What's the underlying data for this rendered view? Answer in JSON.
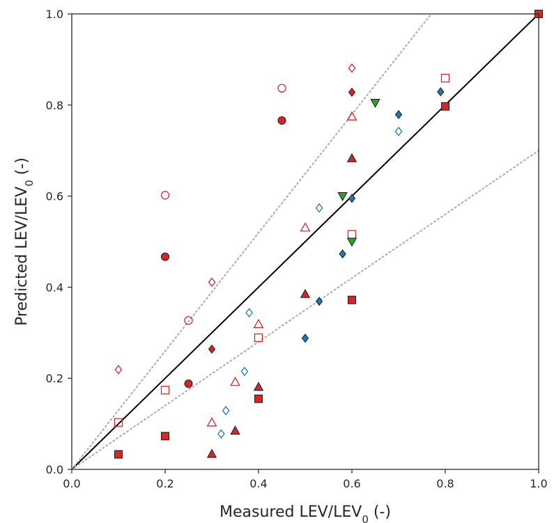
{
  "chart_data": {
    "type": "scatter",
    "xlabel": "Measured LEV/LEV",
    "ylabel": "Predicted LEV/LEV",
    "label_subscript": "0",
    "label_suffix": " (-)",
    "xlim": [
      0,
      1
    ],
    "ylim": [
      0,
      1
    ],
    "xticks": [
      "0.0",
      "0.2",
      "0.4",
      "0.6",
      "0.8",
      "1.0"
    ],
    "yticks": [
      "0.0",
      "0.2",
      "0.4",
      "0.6",
      "0.8",
      "1.0"
    ],
    "grid": false,
    "legend": "none",
    "colors": {
      "red": "#d62728",
      "blue": "#1f77b4",
      "green": "#2ca02c",
      "identity_line": "#000000",
      "bound_lines": "#aaaaaa"
    },
    "reference_lines": [
      {
        "kind": "identity",
        "style": "solid",
        "points": [
          [
            0,
            0
          ],
          [
            1,
            1
          ]
        ]
      },
      {
        "kind": "upper-bound",
        "style": "dotted",
        "points": [
          [
            0,
            0
          ],
          [
            0.77,
            1
          ]
        ]
      },
      {
        "kind": "lower-bound",
        "style": "dotted",
        "points": [
          [
            0,
            0
          ],
          [
            1,
            0.7
          ]
        ]
      }
    ],
    "series": [
      {
        "marker": "circle",
        "filled": true,
        "color": "red",
        "points": [
          [
            0.2,
            0.467
          ],
          [
            0.25,
            0.188
          ],
          [
            0.45,
            0.766
          ]
        ]
      },
      {
        "marker": "circle",
        "filled": false,
        "color": "red",
        "points": [
          [
            0.2,
            0.602
          ],
          [
            0.25,
            0.327
          ],
          [
            0.45,
            0.837
          ]
        ]
      },
      {
        "marker": "diamond",
        "filled": true,
        "color": "red",
        "points": [
          [
            0.3,
            0.264
          ],
          [
            0.6,
            0.828
          ]
        ]
      },
      {
        "marker": "diamond",
        "filled": false,
        "color": "red",
        "points": [
          [
            0.1,
            0.219
          ],
          [
            0.3,
            0.411
          ],
          [
            0.6,
            0.881
          ]
        ]
      },
      {
        "marker": "square",
        "filled": true,
        "color": "red",
        "points": [
          [
            0.1,
            0.033
          ],
          [
            0.2,
            0.073
          ],
          [
            0.4,
            0.155
          ],
          [
            0.6,
            0.372
          ],
          [
            0.8,
            0.797
          ],
          [
            1.0,
            1.0
          ]
        ]
      },
      {
        "marker": "square",
        "filled": false,
        "color": "red",
        "points": [
          [
            0.1,
            0.103
          ],
          [
            0.2,
            0.174
          ],
          [
            0.4,
            0.289
          ],
          [
            0.6,
            0.516
          ],
          [
            0.8,
            0.859
          ]
        ]
      },
      {
        "marker": "triangle-up",
        "filled": true,
        "color": "red",
        "points": [
          [
            0.3,
            0.034
          ],
          [
            0.35,
            0.085
          ],
          [
            0.4,
            0.181
          ],
          [
            0.5,
            0.385
          ],
          [
            0.6,
            0.683
          ]
        ]
      },
      {
        "marker": "triangle-up",
        "filled": false,
        "color": "red",
        "points": [
          [
            0.3,
            0.103
          ],
          [
            0.35,
            0.192
          ],
          [
            0.4,
            0.319
          ],
          [
            0.5,
            0.531
          ],
          [
            0.6,
            0.775
          ]
        ]
      },
      {
        "marker": "diamond",
        "filled": true,
        "color": "blue",
        "points": [
          [
            0.5,
            0.288
          ],
          [
            0.53,
            0.369
          ],
          [
            0.58,
            0.473
          ],
          [
            0.6,
            0.595
          ],
          [
            0.7,
            0.779
          ],
          [
            0.79,
            0.829
          ]
        ]
      },
      {
        "marker": "diamond",
        "filled": false,
        "color": "blue",
        "points": [
          [
            0.32,
            0.078
          ],
          [
            0.33,
            0.129
          ],
          [
            0.37,
            0.215
          ],
          [
            0.38,
            0.344
          ],
          [
            0.53,
            0.574
          ],
          [
            0.7,
            0.742
          ]
        ]
      },
      {
        "marker": "triangle-down",
        "filled": true,
        "color": "green",
        "points": [
          [
            0.58,
            0.6
          ],
          [
            0.6,
            0.5
          ],
          [
            0.65,
            0.805
          ]
        ]
      }
    ]
  }
}
